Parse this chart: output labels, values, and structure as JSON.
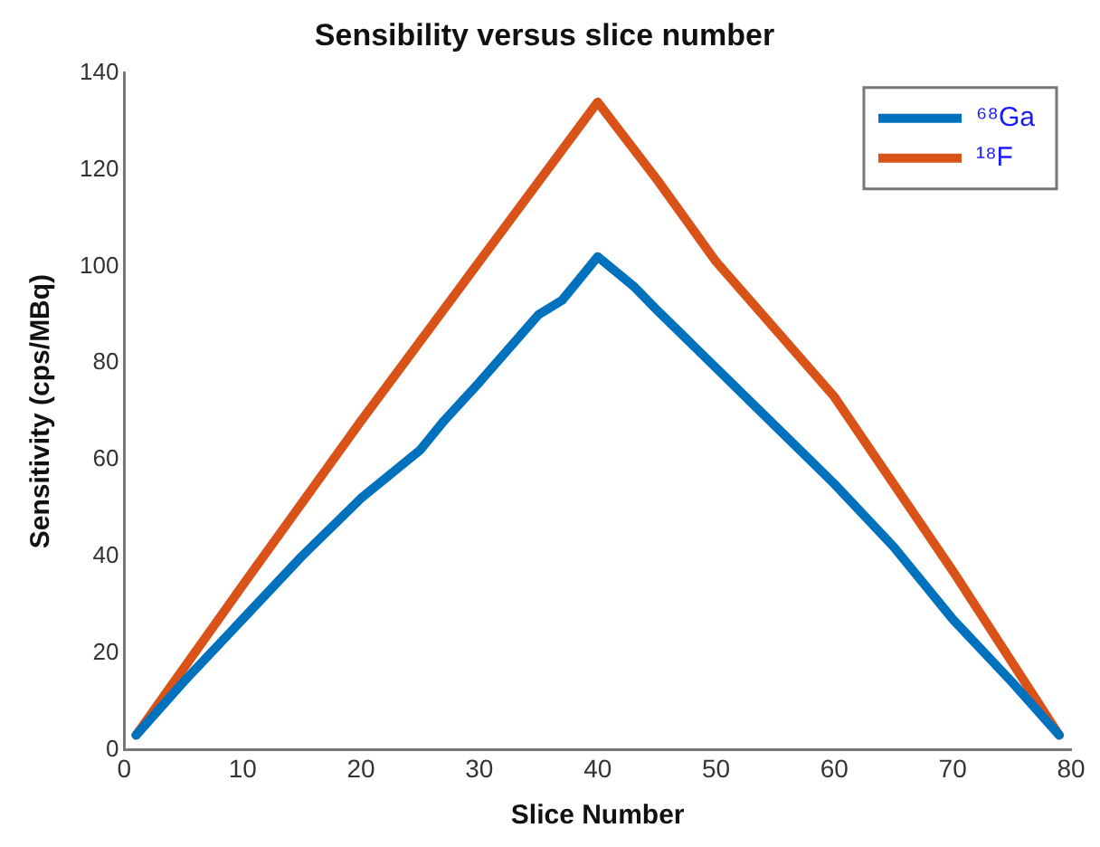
{
  "chart_data": {
    "type": "line",
    "title": "Sensibility versus slice number",
    "xlabel": "Slice Number",
    "ylabel": "Sensitivity (cps/MBq)",
    "xlim": [
      0,
      80
    ],
    "xticks": [
      0,
      10,
      20,
      30,
      40,
      50,
      60,
      70,
      80
    ],
    "ylim": [
      0,
      140
    ],
    "yticks": [
      0,
      20,
      40,
      60,
      80,
      100,
      120,
      140
    ],
    "grid": false,
    "legend": "top right",
    "marker": "none",
    "line_style": "solid",
    "series": [
      {
        "name": "⁶⁸Ga",
        "color": "#0072bd",
        "x": [
          1,
          5,
          10,
          15,
          20,
          25,
          27,
          30,
          35,
          37,
          40,
          43,
          45,
          50,
          55,
          60,
          65,
          70,
          75,
          79
        ],
        "values": [
          3,
          14,
          27,
          40,
          52,
          62,
          68,
          76,
          90,
          93,
          102,
          96,
          91,
          79,
          67,
          55,
          42,
          27,
          14,
          3
        ]
      },
      {
        "name": "¹⁸F",
        "color": "#d95319",
        "x": [
          1,
          10,
          20,
          30,
          40,
          45,
          50,
          60,
          70,
          79
        ],
        "values": [
          3,
          34,
          68,
          101,
          134,
          118,
          101,
          73,
          37,
          3
        ]
      }
    ]
  }
}
